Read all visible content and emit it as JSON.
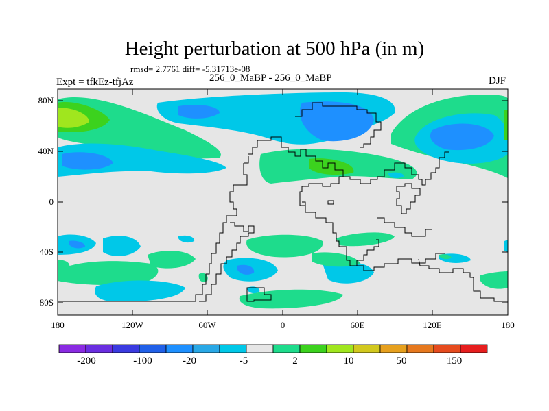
{
  "title": "Height perturbation at 500 hPa (in m)",
  "subtitle_stats": "rmsd= 2.7761 diff= -5.31713e-08",
  "left_label": "Expt = tfkEz-tfjAz",
  "center_label": "256_0_MaBP - 256_0_MaBP",
  "right_label": "DJF",
  "lat_ticks": [
    "80N",
    "40N",
    "0",
    "40S",
    "80S"
  ],
  "lon_ticks": [
    "180",
    "120W",
    "60W",
    "0",
    "60E",
    "120E",
    "180"
  ],
  "colorbar": {
    "labels": [
      "-200",
      "-100",
      "-20",
      "-5",
      "2",
      "10",
      "50",
      "150"
    ],
    "colors": [
      "#8a2be2",
      "#6a2ee0",
      "#3a3ae0",
      "#2060e8",
      "#1e90ff",
      "#29a8e6",
      "#00c8e8",
      "#e6e6e6",
      "#1edc8c",
      "#3cd21e",
      "#a0e61e",
      "#d2c81e",
      "#e6a01e",
      "#e6781e",
      "#e64b1e",
      "#e61e1e"
    ]
  },
  "colors": {
    "background": "#e6e6e6",
    "cyan": "#00c8e8",
    "blue": "#1e90ff",
    "green": "#1edc8c",
    "lime": "#3cd21e",
    "yellow_green": "#a0e61e"
  }
}
